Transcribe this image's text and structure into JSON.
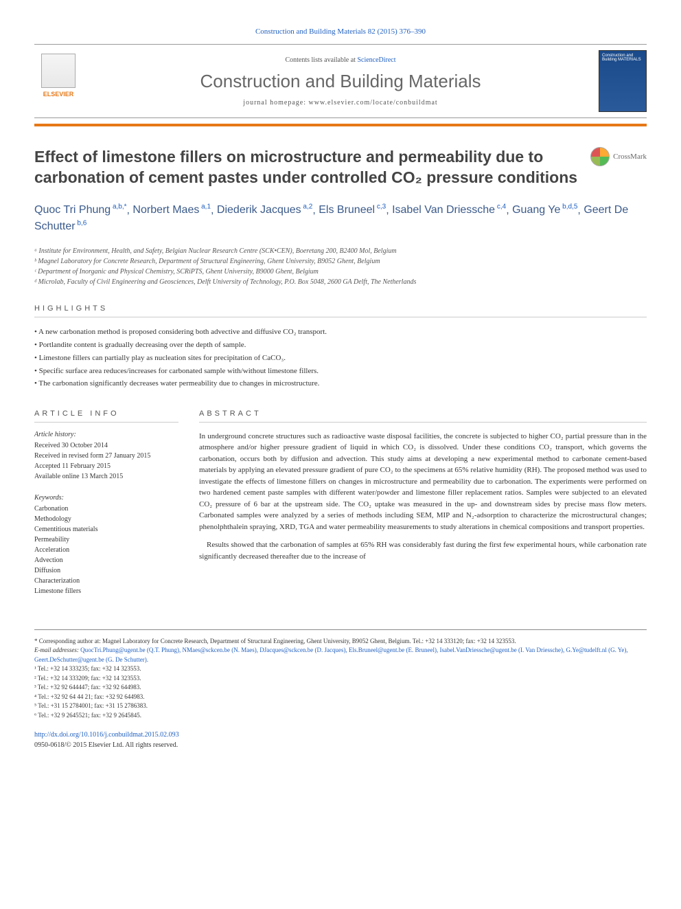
{
  "citation": "Construction and Building Materials 82 (2015) 376–390",
  "banner": {
    "contents_prefix": "Contents lists available at ",
    "contents_link": "ScienceDirect",
    "journal_name": "Construction and Building Materials",
    "homepage": "journal homepage: www.elsevier.com/locate/conbuildmat",
    "publisher": "ELSEVIER",
    "cover_text": "Construction and Building MATERIALS"
  },
  "title": "Effect of limestone fillers on microstructure and permeability due to carbonation of cement pastes under controlled CO₂ pressure conditions",
  "crossmark_label": "CrossMark",
  "authors": [
    {
      "name": "Quoc Tri Phung",
      "sup": "a,b,*"
    },
    {
      "name": "Norbert Maes",
      "sup": "a,1"
    },
    {
      "name": "Diederik Jacques",
      "sup": "a,2"
    },
    {
      "name": "Els Bruneel",
      "sup": "c,3"
    },
    {
      "name": "Isabel Van Driessche",
      "sup": "c,4"
    },
    {
      "name": "Guang Ye",
      "sup": "b,d,5"
    },
    {
      "name": "Geert De Schutter",
      "sup": "b,6"
    }
  ],
  "affiliations": [
    "ᵃ Institute for Environment, Health, and Safety, Belgian Nuclear Research Centre (SCK•CEN), Boeretang 200, B2400 Mol, Belgium",
    "ᵇ Magnel Laboratory for Concrete Research, Department of Structural Engineering, Ghent University, B9052 Ghent, Belgium",
    "ᶜ Department of Inorganic and Physical Chemistry, SCRiPTS, Ghent University, B9000 Ghent, Belgium",
    "ᵈ Microlab, Faculty of Civil Engineering and Geosciences, Delft University of Technology, P.O. Box 5048, 2600 GA Delft, The Netherlands"
  ],
  "highlights_heading": "HIGHLIGHTS",
  "highlights": [
    "A new carbonation method is proposed considering both advective and diffusive CO₂ transport.",
    "Portlandite content is gradually decreasing over the depth of sample.",
    "Limestone fillers can partially play as nucleation sites for precipitation of CaCO₃.",
    "Specific surface area reduces/increases for carbonated sample with/without limestone fillers.",
    "The carbonation significantly decreases water permeability due to changes in microstructure."
  ],
  "info_heading": "ARTICLE INFO",
  "abstract_heading": "ABSTRACT",
  "history_label": "Article history:",
  "history": [
    "Received 30 October 2014",
    "Received in revised form 27 January 2015",
    "Accepted 11 February 2015",
    "Available online 13 March 2015"
  ],
  "keywords_label": "Keywords:",
  "keywords": [
    "Carbonation",
    "Methodology",
    "Cementitious materials",
    "Permeability",
    "Acceleration",
    "Advection",
    "Diffusion",
    "Characterization",
    "Limestone fillers"
  ],
  "abstract": [
    "In underground concrete structures such as radioactive waste disposal facilities, the concrete is subjected to higher CO₂ partial pressure than in the atmosphere and/or higher pressure gradient of liquid in which CO₂ is dissolved. Under these conditions CO₂ transport, which governs the carbonation, occurs both by diffusion and advection. This study aims at developing a new experimental method to carbonate cement-based materials by applying an elevated pressure gradient of pure CO₂ to the specimens at 65% relative humidity (RH). The proposed method was used to investigate the effects of limestone fillers on changes in microstructure and permeability due to carbonation. The experiments were performed on two hardened cement paste samples with different water/powder and limestone filler replacement ratios. Samples were subjected to an elevated CO₂ pressure of 6 bar at the upstream side. The CO₂ uptake was measured in the up- and downstream sides by precise mass flow meters. Carbonated samples were analyzed by a series of methods including SEM, MIP and N₂-adsorption to characterize the microstructural changes; phenolphthalein spraying, XRD, TGA and water permeability measurements to study alterations in chemical compositions and transport properties.",
    "Results showed that the carbonation of samples at 65% RH was considerably fast during the first few experimental hours, while carbonation rate significantly decreased thereafter due to the increase of"
  ],
  "footnotes": {
    "corresponding": "* Corresponding author at: Magnel Laboratory for Concrete Research, Department of Structural Engineering, Ghent University, B9052 Ghent, Belgium. Tel.: +32 14 333120; fax: +32 14 323553.",
    "emails_label": "E-mail addresses: ",
    "emails": "QuocTri.Phung@ugent.be (Q.T. Phung), NMaes@sckcen.be (N. Maes), DJacques@sckcen.be (D. Jacques), Els.Bruneel@ugent.be (E. Bruneel), Isabel.VanDriessche@ugent.be (I. Van Driessche), G.Ye@tudelft.nl (G. Ye), Geert.DeSchutter@ugent.be (G. De Schutter).",
    "tels": [
      "¹ Tel.: +32 14 333235; fax: +32 14 323553.",
      "² Tel.: +32 14 333209; fax: +32 14 323553.",
      "³ Tel.: +32 92 644447; fax: +32 92 644983.",
      "⁴ Tel.: +32 92 64 44 21; fax: +32 92 644983.",
      "⁵ Tel.: +31 15 2784001; fax: +31 15 2786383.",
      "⁶ Tel.: +32 9 2645521; fax: +32 9 2645845."
    ]
  },
  "doi": {
    "url": "http://dx.doi.org/10.1016/j.conbuildmat.2015.02.093",
    "issn": "0950-0618/© 2015 Elsevier Ltd. All rights reserved."
  },
  "colors": {
    "link": "#2060c0",
    "accent": "#e67817",
    "heading": "#444444"
  }
}
